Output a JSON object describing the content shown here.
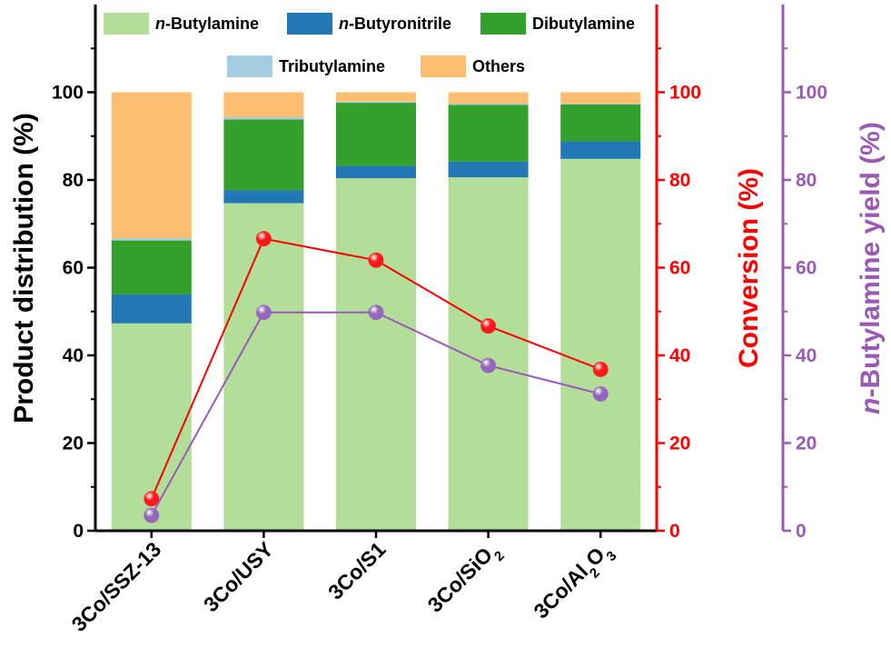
{
  "chart_data": {
    "type": "bar",
    "stacked": true,
    "categories": [
      {
        "name": "3Co/SSZ-13",
        "parts": [
          {
            "t": "3Co/SSZ-13"
          }
        ]
      },
      {
        "name": "3Co/USY",
        "parts": [
          {
            "t": "3Co/USY"
          }
        ]
      },
      {
        "name": "3Co/S1",
        "parts": [
          {
            "t": "3Co/S1"
          }
        ]
      },
      {
        "name": "3Co/SiO2",
        "parts": [
          {
            "t": "3Co/SiO"
          },
          {
            "t": "2",
            "sub": true
          }
        ]
      },
      {
        "name": "3Co/Al2O3",
        "parts": [
          {
            "t": "3Co/Al"
          },
          {
            "t": "2",
            "sub": true
          },
          {
            "t": "O"
          },
          {
            "t": "3",
            "sub": true
          }
        ]
      }
    ],
    "series": [
      {
        "name_prefix": "n",
        "name_rest": "-Butylamine",
        "color": "#b3de9a",
        "values": [
          47.3,
          74.7,
          80.4,
          80.6,
          84.8
        ]
      },
      {
        "name_prefix": "n",
        "name_rest": "-Butyronitrile",
        "color": "#2178b5",
        "values": [
          6.6,
          3.0,
          2.8,
          3.6,
          4.0
        ]
      },
      {
        "name_prefix": "",
        "name_rest": "Dibutylamine",
        "color": "#33a02c",
        "values": [
          12.3,
          16.1,
          14.4,
          12.9,
          8.4
        ]
      },
      {
        "name_prefix": "",
        "name_rest": "Tributylamine",
        "color": "#a6cee3",
        "values": [
          0.5,
          0.5,
          0.3,
          0.3,
          0.2
        ]
      },
      {
        "name_prefix": "",
        "name_rest": "Others",
        "color": "#fdbf6f",
        "values": [
          33.3,
          5.7,
          2.1,
          2.6,
          2.6
        ]
      }
    ],
    "lines": [
      {
        "name": "Conversion",
        "axis": "right1",
        "color": "#ff0000",
        "marker_color": "#ff1a1a",
        "values": [
          7.3,
          66.6,
          61.7,
          46.7,
          36.8
        ]
      },
      {
        "name": "n-Butylamine yield",
        "axis": "right2",
        "color": "#9b59b6",
        "marker_color": "#9467bd",
        "values": [
          3.5,
          49.8,
          49.8,
          37.7,
          31.2
        ]
      }
    ],
    "ylabel_left": "Product distribution (%)",
    "ylabel_right1": "Conversion (%)",
    "ylabel_right2_prefix": "n",
    "ylabel_right2_rest": "-Butylamine yield (%)",
    "ylim": [
      0,
      120
    ],
    "ticks": [
      0,
      20,
      40,
      60,
      80,
      100
    ],
    "tick_labels": [
      "0",
      "20",
      "40",
      "60",
      "80",
      "100"
    ],
    "legend_position": "top",
    "colors": {
      "axis_left": "#000000",
      "axis_right1": "#ff0000",
      "axis_right2": "#9b59b6"
    }
  }
}
